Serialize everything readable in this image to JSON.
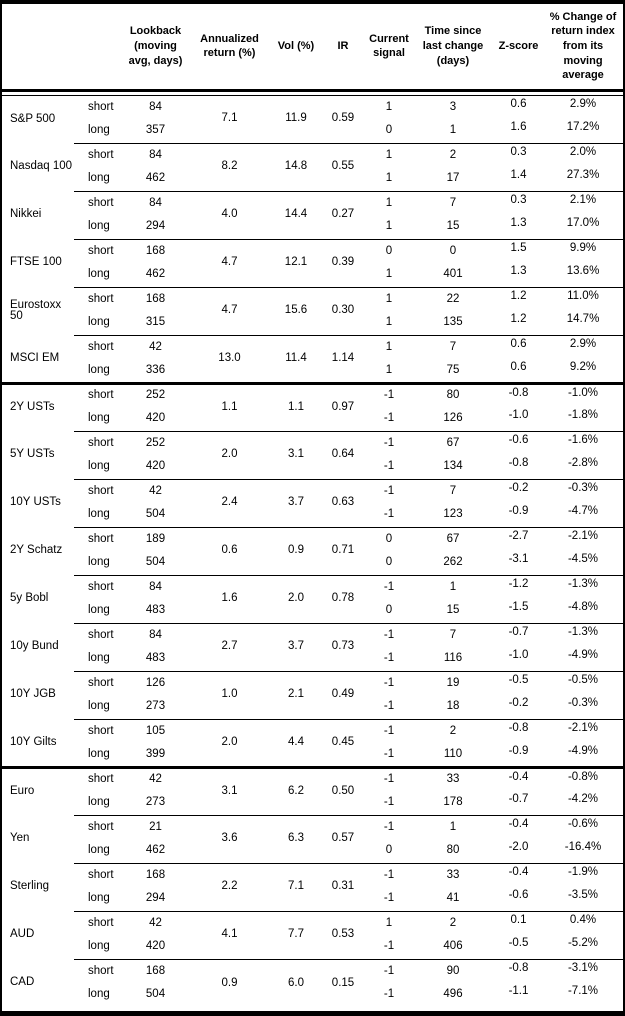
{
  "colors": {
    "text": "#000000",
    "border": "#000000",
    "background": "#ffffff"
  },
  "table": {
    "header": {
      "asset": "",
      "period": "",
      "lookback": "Lookback (moving avg, days)",
      "annualized_return": "Annualized return (%)",
      "vol": "Vol (%)",
      "ir": "IR",
      "current_signal": "Current signal",
      "time_since_last_change": "Time since last change (days)",
      "zscore": "Z-score",
      "pct_change": "% Change of return index from its moving average"
    },
    "period_labels": {
      "short": "short",
      "long": "long"
    },
    "groups": [
      {
        "name": "S&P 500",
        "section_start": false,
        "annualized_return": "7.1",
        "vol": "11.9",
        "ir": "0.59",
        "short": {
          "lookback": "84",
          "signal": "1",
          "days_since_change": "3",
          "zscore": "0.6",
          "pct_change": "2.9%"
        },
        "long": {
          "lookback": "357",
          "signal": "0",
          "days_since_change": "1",
          "zscore": "1.6",
          "pct_change": "17.2%"
        }
      },
      {
        "name": "Nasdaq 100",
        "section_start": false,
        "annualized_return": "8.2",
        "vol": "14.8",
        "ir": "0.55",
        "short": {
          "lookback": "84",
          "signal": "1",
          "days_since_change": "2",
          "zscore": "0.3",
          "pct_change": "2.0%"
        },
        "long": {
          "lookback": "462",
          "signal": "1",
          "days_since_change": "17",
          "zscore": "1.4",
          "pct_change": "27.3%"
        }
      },
      {
        "name": "Nikkei",
        "section_start": false,
        "annualized_return": "4.0",
        "vol": "14.4",
        "ir": "0.27",
        "short": {
          "lookback": "84",
          "signal": "1",
          "days_since_change": "7",
          "zscore": "0.3",
          "pct_change": "2.1%"
        },
        "long": {
          "lookback": "294",
          "signal": "1",
          "days_since_change": "15",
          "zscore": "1.3",
          "pct_change": "17.0%"
        }
      },
      {
        "name": "FTSE 100",
        "section_start": false,
        "annualized_return": "4.7",
        "vol": "12.1",
        "ir": "0.39",
        "short": {
          "lookback": "168",
          "signal": "0",
          "days_since_change": "0",
          "zscore": "1.5",
          "pct_change": "9.9%"
        },
        "long": {
          "lookback": "462",
          "signal": "1",
          "days_since_change": "401",
          "zscore": "1.3",
          "pct_change": "13.6%"
        }
      },
      {
        "name": "Eurostoxx 50",
        "section_start": false,
        "annualized_return": "4.7",
        "vol": "15.6",
        "ir": "0.30",
        "short": {
          "lookback": "168",
          "signal": "1",
          "days_since_change": "22",
          "zscore": "1.2",
          "pct_change": "11.0%"
        },
        "long": {
          "lookback": "315",
          "signal": "1",
          "days_since_change": "135",
          "zscore": "1.2",
          "pct_change": "14.7%"
        }
      },
      {
        "name": "MSCI EM",
        "section_start": false,
        "annualized_return": "13.0",
        "vol": "11.4",
        "ir": "1.14",
        "short": {
          "lookback": "42",
          "signal": "1",
          "days_since_change": "7",
          "zscore": "0.6",
          "pct_change": "2.9%"
        },
        "long": {
          "lookback": "336",
          "signal": "1",
          "days_since_change": "75",
          "zscore": "0.6",
          "pct_change": "9.2%"
        }
      },
      {
        "name": "2Y USTs",
        "section_start": true,
        "annualized_return": "1.1",
        "vol": "1.1",
        "ir": "0.97",
        "short": {
          "lookback": "252",
          "signal": "-1",
          "days_since_change": "80",
          "zscore": "-0.8",
          "pct_change": "-1.0%"
        },
        "long": {
          "lookback": "420",
          "signal": "-1",
          "days_since_change": "126",
          "zscore": "-1.0",
          "pct_change": "-1.8%"
        }
      },
      {
        "name": "5Y USTs",
        "section_start": false,
        "annualized_return": "2.0",
        "vol": "3.1",
        "ir": "0.64",
        "short": {
          "lookback": "252",
          "signal": "-1",
          "days_since_change": "67",
          "zscore": "-0.6",
          "pct_change": "-1.6%"
        },
        "long": {
          "lookback": "420",
          "signal": "-1",
          "days_since_change": "134",
          "zscore": "-0.8",
          "pct_change": "-2.8%"
        }
      },
      {
        "name": "10Y USTs",
        "section_start": false,
        "annualized_return": "2.4",
        "vol": "3.7",
        "ir": "0.63",
        "short": {
          "lookback": "42",
          "signal": "-1",
          "days_since_change": "7",
          "zscore": "-0.2",
          "pct_change": "-0.3%"
        },
        "long": {
          "lookback": "504",
          "signal": "-1",
          "days_since_change": "123",
          "zscore": "-0.9",
          "pct_change": "-4.7%"
        }
      },
      {
        "name": "2Y Schatz",
        "section_start": false,
        "annualized_return": "0.6",
        "vol": "0.9",
        "ir": "0.71",
        "short": {
          "lookback": "189",
          "signal": "0",
          "days_since_change": "67",
          "zscore": "-2.7",
          "pct_change": "-2.1%"
        },
        "long": {
          "lookback": "504",
          "signal": "0",
          "days_since_change": "262",
          "zscore": "-3.1",
          "pct_change": "-4.5%"
        }
      },
      {
        "name": "5y Bobl",
        "section_start": false,
        "annualized_return": "1.6",
        "vol": "2.0",
        "ir": "0.78",
        "short": {
          "lookback": "84",
          "signal": "-1",
          "days_since_change": "1",
          "zscore": "-1.2",
          "pct_change": "-1.3%"
        },
        "long": {
          "lookback": "483",
          "signal": "0",
          "days_since_change": "15",
          "zscore": "-1.5",
          "pct_change": "-4.8%"
        }
      },
      {
        "name": "10y Bund",
        "section_start": false,
        "annualized_return": "2.7",
        "vol": "3.7",
        "ir": "0.73",
        "short": {
          "lookback": "84",
          "signal": "-1",
          "days_since_change": "7",
          "zscore": "-0.7",
          "pct_change": "-1.3%"
        },
        "long": {
          "lookback": "483",
          "signal": "-1",
          "days_since_change": "116",
          "zscore": "-1.0",
          "pct_change": "-4.9%"
        }
      },
      {
        "name": "10Y JGB",
        "section_start": false,
        "annualized_return": "1.0",
        "vol": "2.1",
        "ir": "0.49",
        "short": {
          "lookback": "126",
          "signal": "-1",
          "days_since_change": "19",
          "zscore": "-0.5",
          "pct_change": "-0.5%"
        },
        "long": {
          "lookback": "273",
          "signal": "-1",
          "days_since_change": "18",
          "zscore": "-0.2",
          "pct_change": "-0.3%"
        }
      },
      {
        "name": "10Y Gilts",
        "section_start": false,
        "annualized_return": "2.0",
        "vol": "4.4",
        "ir": "0.45",
        "short": {
          "lookback": "105",
          "signal": "-1",
          "days_since_change": "2",
          "zscore": "-0.8",
          "pct_change": "-2.1%"
        },
        "long": {
          "lookback": "399",
          "signal": "-1",
          "days_since_change": "110",
          "zscore": "-0.9",
          "pct_change": "-4.9%"
        }
      },
      {
        "name": "Euro",
        "section_start": true,
        "annualized_return": "3.1",
        "vol": "6.2",
        "ir": "0.50",
        "short": {
          "lookback": "42",
          "signal": "-1",
          "days_since_change": "33",
          "zscore": "-0.4",
          "pct_change": "-0.8%"
        },
        "long": {
          "lookback": "273",
          "signal": "-1",
          "days_since_change": "178",
          "zscore": "-0.7",
          "pct_change": "-4.2%"
        }
      },
      {
        "name": "Yen",
        "section_start": false,
        "annualized_return": "3.6",
        "vol": "6.3",
        "ir": "0.57",
        "short": {
          "lookback": "21",
          "signal": "-1",
          "days_since_change": "1",
          "zscore": "-0.4",
          "pct_change": "-0.6%"
        },
        "long": {
          "lookback": "462",
          "signal": "0",
          "days_since_change": "80",
          "zscore": "-2.0",
          "pct_change": "-16.4%"
        }
      },
      {
        "name": "Sterling",
        "section_start": false,
        "annualized_return": "2.2",
        "vol": "7.1",
        "ir": "0.31",
        "short": {
          "lookback": "168",
          "signal": "-1",
          "days_since_change": "33",
          "zscore": "-0.4",
          "pct_change": "-1.9%"
        },
        "long": {
          "lookback": "294",
          "signal": "-1",
          "days_since_change": "41",
          "zscore": "-0.6",
          "pct_change": "-3.5%"
        }
      },
      {
        "name": "AUD",
        "section_start": false,
        "annualized_return": "4.1",
        "vol": "7.7",
        "ir": "0.53",
        "short": {
          "lookback": "42",
          "signal": "1",
          "days_since_change": "2",
          "zscore": "0.1",
          "pct_change": "0.4%"
        },
        "long": {
          "lookback": "420",
          "signal": "-1",
          "days_since_change": "406",
          "zscore": "-0.5",
          "pct_change": "-5.2%"
        }
      },
      {
        "name": "CAD",
        "section_start": false,
        "annualized_return": "0.9",
        "vol": "6.0",
        "ir": "0.15",
        "short": {
          "lookback": "168",
          "signal": "-1",
          "days_since_change": "90",
          "zscore": "-0.8",
          "pct_change": "-3.1%"
        },
        "long": {
          "lookback": "504",
          "signal": "-1",
          "days_since_change": "496",
          "zscore": "-1.1",
          "pct_change": "-7.1%"
        }
      }
    ]
  }
}
